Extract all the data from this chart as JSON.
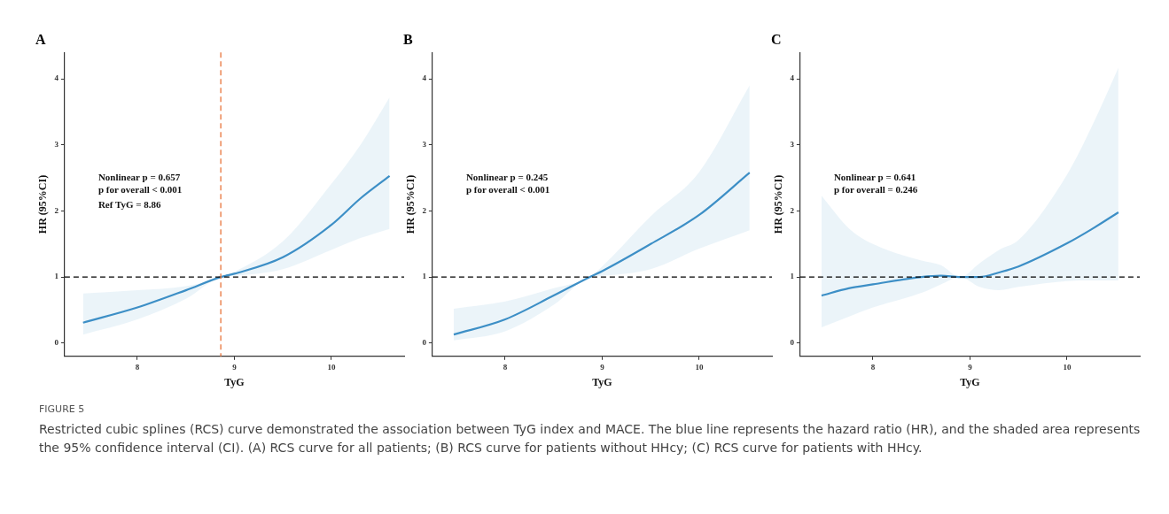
{
  "chart_data": [
    {
      "type": "line",
      "title": "A",
      "xlabel": "TyG",
      "ylabel": "HR (95%CI)",
      "xlim": [
        7.25,
        10.75
      ],
      "ylim": [
        -0.2,
        4.4
      ],
      "xticks": [
        8,
        9,
        10
      ],
      "yticks": [
        0,
        1,
        2,
        3,
        4
      ],
      "grid": false,
      "legend": false,
      "line_style": "solid",
      "marker": "none",
      "annotations": [
        "Nonlinear p = 0.657",
        "p for overall < 0.001",
        "Ref TyG = 8.86"
      ],
      "ref_lines": [
        {
          "axis": "y",
          "value": 1,
          "color": "#000000",
          "line_style": "dashed"
        },
        {
          "axis": "x",
          "value": 8.86,
          "color": "#e8743b",
          "line_style": "dashed"
        }
      ],
      "series": [
        {
          "color": "#3d8fc6",
          "x": [
            7.44,
            8,
            8.5,
            8.86,
            9,
            9.5,
            10,
            10.3,
            10.6
          ],
          "values": [
            0.31,
            0.54,
            0.8,
            1.0,
            1.05,
            1.3,
            1.79,
            2.19,
            2.53
          ],
          "lower": [
            0.13,
            0.36,
            0.67,
            1.0,
            1.02,
            1.12,
            1.41,
            1.59,
            1.73
          ],
          "upper": [
            0.75,
            0.8,
            0.86,
            1.0,
            1.08,
            1.54,
            2.41,
            3.0,
            3.72
          ]
        }
      ]
    },
    {
      "type": "line",
      "title": "B",
      "xlabel": "TyG",
      "ylabel": "HR (95%CI)",
      "xlim": [
        7.25,
        10.75
      ],
      "ylim": [
        -0.2,
        4.4
      ],
      "xticks": [
        8,
        9,
        10
      ],
      "yticks": [
        0,
        1,
        2,
        3,
        4
      ],
      "grid": false,
      "legend": false,
      "line_style": "solid",
      "marker": "none",
      "annotations": [
        "Nonlinear p = 0.245",
        "p for overall < 0.001"
      ],
      "ref_lines": [
        {
          "axis": "y",
          "value": 1,
          "color": "#000000",
          "line_style": "dashed"
        }
      ],
      "series": [
        {
          "color": "#3d8fc6",
          "x": [
            7.47,
            8,
            8.5,
            8.87,
            9,
            9.5,
            10,
            10.52
          ],
          "values": [
            0.13,
            0.36,
            0.72,
            1.0,
            1.09,
            1.5,
            1.94,
            2.58
          ],
          "lower": [
            0.04,
            0.18,
            0.58,
            1.0,
            1.02,
            1.12,
            1.43,
            1.71
          ],
          "upper": [
            0.52,
            0.63,
            0.83,
            1.0,
            1.16,
            1.92,
            2.59,
            3.9
          ]
        }
      ]
    },
    {
      "type": "line",
      "title": "C",
      "xlabel": "TyG",
      "ylabel": "HR (95%CI)",
      "xlim": [
        7.25,
        10.75
      ],
      "ylim": [
        -0.2,
        4.4
      ],
      "xticks": [
        8,
        9,
        10
      ],
      "yticks": [
        0,
        1,
        2,
        3,
        4
      ],
      "grid": false,
      "legend": false,
      "line_style": "solid",
      "marker": "none",
      "annotations": [
        "Nonlinear p = 0.641",
        "p for overall = 0.246"
      ],
      "ref_lines": [
        {
          "axis": "y",
          "value": 1,
          "color": "#000000",
          "line_style": "dashed"
        }
      ],
      "series": [
        {
          "color": "#3d8fc6",
          "x": [
            7.47,
            7.75,
            8,
            8.5,
            8.7,
            8.9,
            9.1,
            9.3,
            9.5,
            10,
            10.25,
            10.53
          ],
          "values": [
            0.72,
            0.83,
            0.89,
            1.0,
            1.02,
            1.0,
            1.0,
            1.07,
            1.16,
            1.51,
            1.72,
            1.98
          ],
          "lower": [
            0.24,
            0.4,
            0.54,
            0.76,
            0.89,
            1.0,
            0.85,
            0.8,
            0.85,
            0.94,
            0.95,
            0.95
          ],
          "upper": [
            2.23,
            1.74,
            1.5,
            1.25,
            1.18,
            1.0,
            1.21,
            1.41,
            1.56,
            2.55,
            3.26,
            4.17
          ]
        }
      ]
    },
    {
      "type": "other",
      "title": "FIGURE 5",
      "annotations": [
        "Restricted cubic splines (RCS) curve demonstrated the association between TyG index and MACE. The blue line represents the hazard ratio (HR), and the shaded area represents the 95% confidence interval (CI). (A) RCS curve for all patients; (B) RCS curve for patients without HHcy; (C) RCS curve for patients with HHcy."
      ]
    }
  ]
}
